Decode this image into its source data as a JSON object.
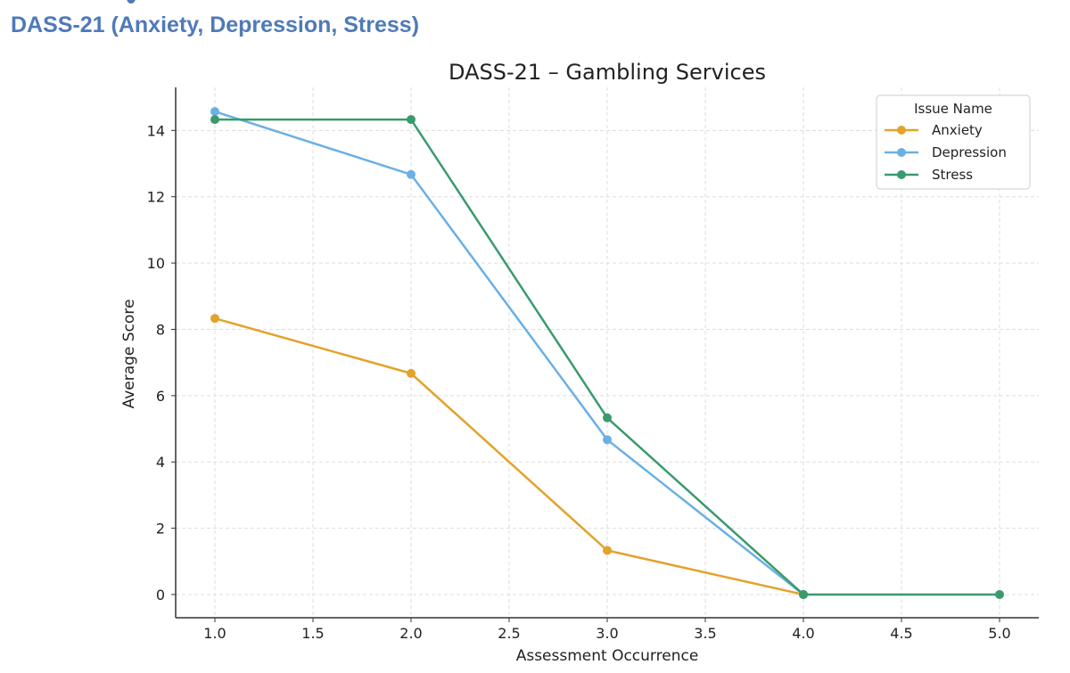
{
  "page": {
    "heading": "DASS-21 (Anxiety, Depression, Stress)"
  },
  "chart_data": {
    "type": "line",
    "title": "DASS-21 – Gambling Services",
    "xlabel": "Assessment Occurrence",
    "ylabel": "Average Score",
    "xlim": [
      0.8,
      5.2
    ],
    "ylim": [
      -0.7,
      15.3
    ],
    "xticks": [
      1.0,
      1.5,
      2.0,
      2.5,
      3.0,
      3.5,
      4.0,
      4.5,
      5.0
    ],
    "xtick_labels": [
      "1.0",
      "1.5",
      "2.0",
      "2.5",
      "3.0",
      "3.5",
      "4.0",
      "4.5",
      "5.0"
    ],
    "yticks": [
      0,
      2,
      4,
      6,
      8,
      10,
      12,
      14
    ],
    "ytick_labels": [
      "0",
      "2",
      "4",
      "6",
      "8",
      "10",
      "12",
      "14"
    ],
    "grid": true,
    "legend": {
      "title": "Issue Name",
      "placement": "top-right"
    },
    "series": [
      {
        "name": "Anxiety",
        "color": "#e3a22a",
        "x": [
          1,
          2,
          3,
          4
        ],
        "y": [
          8.33,
          6.67,
          1.33,
          0
        ]
      },
      {
        "name": "Depression",
        "color": "#6ab0e4",
        "x": [
          1,
          2,
          3,
          4
        ],
        "y": [
          14.57,
          12.67,
          4.67,
          0
        ]
      },
      {
        "name": "Stress",
        "color": "#3a9a6e",
        "x": [
          1,
          2,
          3,
          4,
          5
        ],
        "y": [
          14.33,
          14.33,
          5.33,
          0,
          0
        ]
      }
    ]
  }
}
